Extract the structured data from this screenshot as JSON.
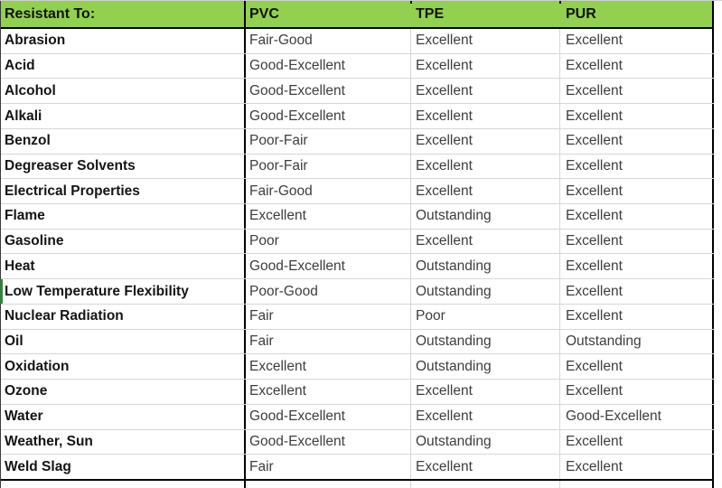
{
  "table": {
    "columns": [
      "Resistant To:",
      "PVC",
      "TPE",
      "PUR"
    ],
    "rows": [
      [
        "Abrasion",
        "Fair-Good",
        "Excellent",
        "Excellent"
      ],
      [
        "Acid",
        "Good-Excellent",
        "Excellent",
        "Excellent"
      ],
      [
        "Alcohol",
        "Good-Excellent",
        "Excellent",
        "Excellent"
      ],
      [
        "Alkali",
        "Good-Excellent",
        "Excellent",
        "Excellent"
      ],
      [
        "Benzol",
        "Poor-Fair",
        "Excellent",
        "Excellent"
      ],
      [
        "Degreaser Solvents",
        "Poor-Fair",
        "Excellent",
        "Excellent"
      ],
      [
        "Electrical Properties",
        "Fair-Good",
        "Excellent",
        "Excellent"
      ],
      [
        "Flame",
        "Excellent",
        "Outstanding",
        "Excellent"
      ],
      [
        "Gasoline",
        "Poor",
        "Excellent",
        "Excellent"
      ],
      [
        "Heat",
        "Good-Excellent",
        "Outstanding",
        "Excellent"
      ],
      [
        "Low Temperature Flexibility",
        "Poor-Good",
        "Outstanding",
        "Excellent"
      ],
      [
        "Nuclear Radiation",
        "Fair",
        "Poor",
        "Excellent"
      ],
      [
        "Oil",
        "Fair",
        "Outstanding",
        "Outstanding"
      ],
      [
        "Oxidation",
        "Excellent",
        "Outstanding",
        "Excellent"
      ],
      [
        "Ozone",
        "Excellent",
        "Excellent",
        "Excellent"
      ],
      [
        "Water",
        "Good-Excellent",
        "Excellent",
        "Good-Excellent"
      ],
      [
        "Weather, Sun",
        "Good-Excellent",
        "Outstanding",
        "Excellent"
      ],
      [
        "Weld Slag",
        "Fair",
        "Excellent",
        "Excellent"
      ]
    ]
  },
  "colors": {
    "header_bg": "#92d050",
    "gridline": "#d6d6d6",
    "black_border": "#000000",
    "row_marker_green": "#35803e",
    "label_text": "#141414",
    "value_text": "#3d3d3d"
  }
}
